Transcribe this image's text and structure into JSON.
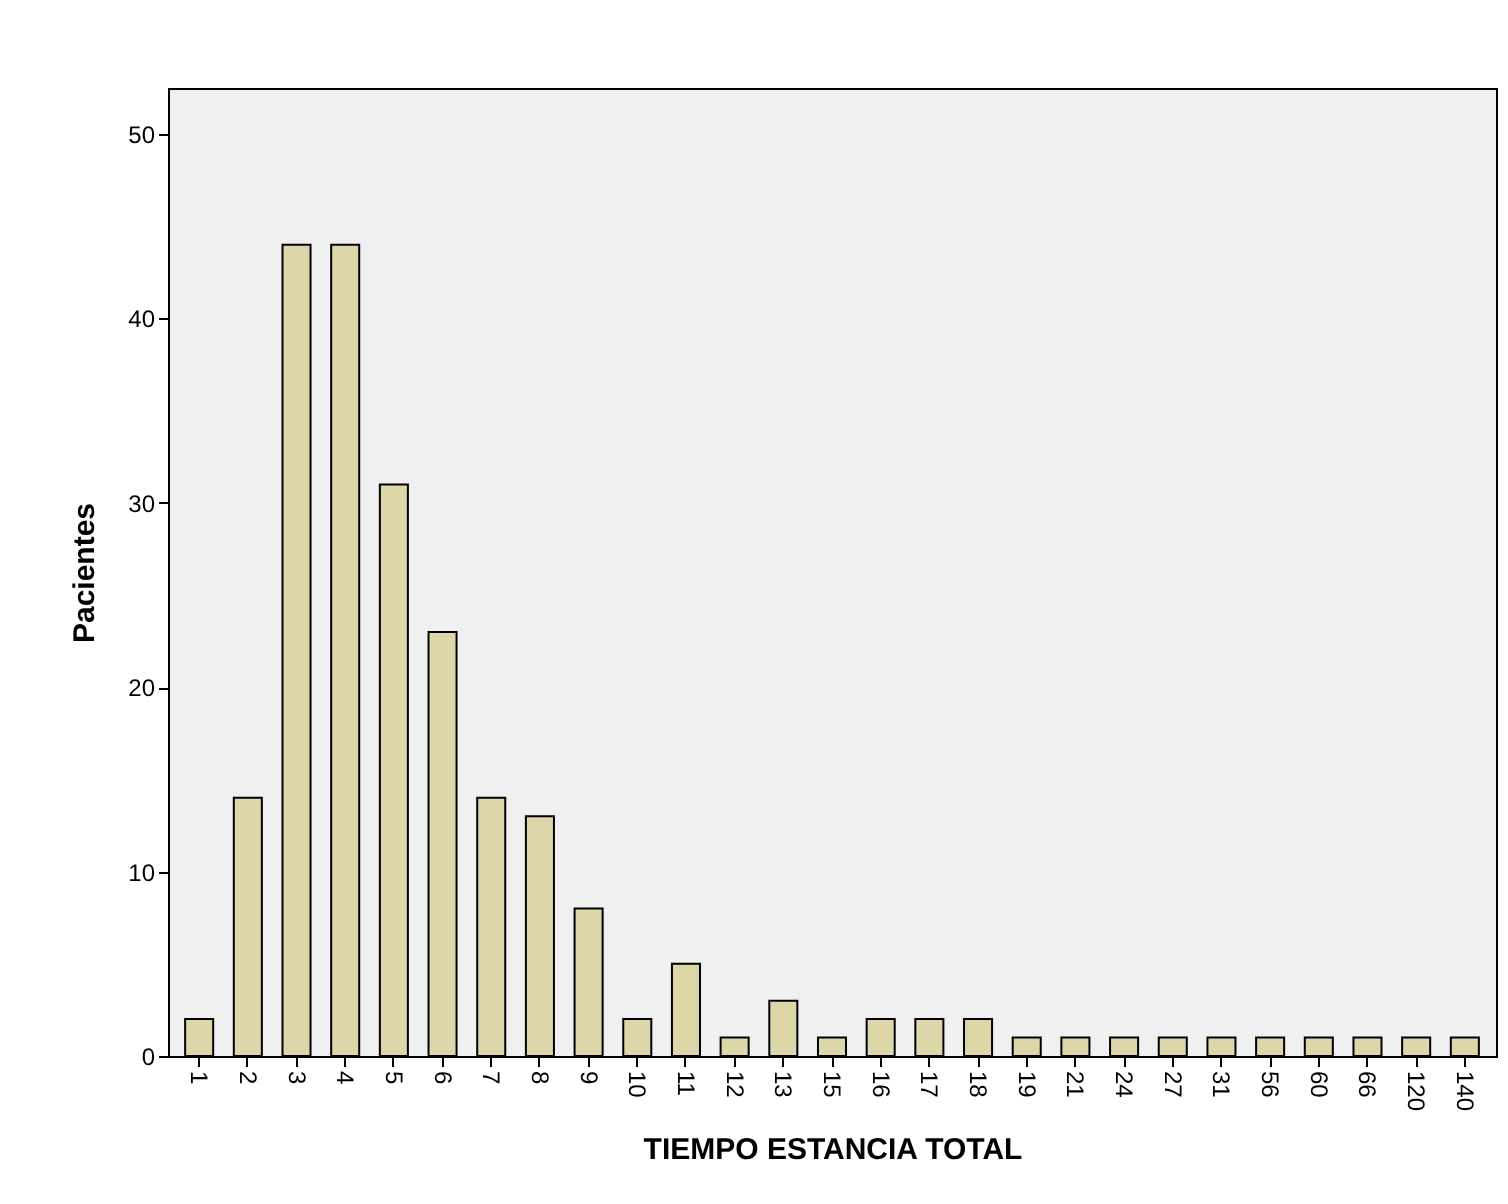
{
  "chart_data": {
    "type": "bar",
    "xlabel": "TIEMPO ESTANCIA TOTAL",
    "ylabel": "Pacientes",
    "categories": [
      "1",
      "2",
      "3",
      "4",
      "5",
      "6",
      "7",
      "8",
      "9",
      "10",
      "11",
      "12",
      "13",
      "15",
      "16",
      "17",
      "18",
      "19",
      "21",
      "24",
      "27",
      "31",
      "56",
      "60",
      "66",
      "120",
      "140"
    ],
    "values": [
      2,
      14,
      44,
      44,
      31,
      23,
      14,
      13,
      8,
      2,
      5,
      1,
      3,
      1,
      2,
      2,
      2,
      1,
      1,
      1,
      1,
      1,
      1,
      1,
      1,
      1,
      1
    ],
    "color": "#ddd6a8",
    "ylim": [
      0,
      52.5
    ],
    "yticks": [
      0,
      10,
      20,
      30,
      40,
      50
    ],
    "grid": false
  }
}
